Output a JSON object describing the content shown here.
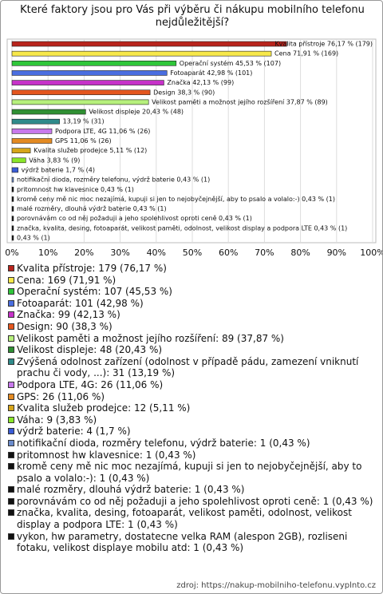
{
  "chart_data": {
    "type": "hbar",
    "title": "Které faktory jsou pro Vás při výběru či nákupu mobilního telefonu nejdůležitější?",
    "values": [
      76.17,
      71.91,
      45.53,
      42.98,
      42.13,
      38.3,
      37.87,
      20.43,
      13.19,
      11.06,
      11.06,
      5.11,
      3.83,
      1.7,
      0.43,
      0.43,
      0.43,
      0.43,
      0.43,
      0.43,
      0.43
    ],
    "value_labels": [
      "Kvalita přístroje 76,17 % (179)",
      "Cena 71,91 % (169)",
      "Operační systém 45,53 % (107)",
      "Fotoaparát 42,98 % (101)",
      "Značka 42,13 % (99)",
      "Design 38,3 % (90)",
      "Velikost paměti a možnost jejího rozšíření 37,87 % (89)",
      "Velikost displeje 20,43 % (48)",
      "13,19 % (31)",
      "Podpora LTE, 4G 11,06 % (26)",
      "GPS 11,06 % (26)",
      "Kvalita služeb prodejce 5,11 % (12)",
      "Váha 3,83 % (9)",
      "výdrž baterie 1,7 % (4)",
      "notifikační dioda, rozměry telefonu, výdrž baterie 0,43 % (1)",
      "pritomnost hw klavesnice 0,43 % (1)",
      "kromě ceny mě nic moc nezajímá, kupuji si jen to nejobyčejnější, aby to psalo a volalo:-) 0,43 % (1)",
      "malé rozměry, dlouhá výdrž baterie 0,43 % (1)",
      "porovnávám co od něj požaduji a jeho spolehlivost oproti ceně 0,43 % (1)",
      "značka, kvalita, desing, fotoaparát, velikost paměti, odolnost, velikost display a podpora LTE 0,43 % (1)",
      "0,43 % (1)"
    ],
    "legend": [
      "Kvalita přístroje: 179 (76,17 %)",
      "Cena: 169 (71,91 %)",
      "Operační systém: 107 (45,53 %)",
      "Fotoaparát: 101 (42,98 %)",
      "Značka: 99 (42,13 %)",
      "Design: 90 (38,3 %)",
      "Velikost paměti a možnost jejího rozšíření: 89 (37,87 %)",
      "Velikost displeje: 48 (20,43 %)",
      "Zvýšená odolnost zařízení (odolnost v případě pádu, zamezení vniknutí prachu či vody, ...): 31 (13,19 %)",
      "Podpora LTE, 4G: 26 (11,06 %)",
      "GPS: 26 (11,06 %)",
      "Kvalita služeb prodejce: 12 (5,11 %)",
      "Váha: 9 (3,83 %)",
      "výdrž baterie: 4 (1,7 %)",
      "notifikační dioda, rozměry telefonu, výdrž baterie: 1 (0,43 %)",
      "pritomnost hw klavesnice: 1 (0,43 %)",
      "kromě ceny mě nic moc nezajímá, kupuji si jen to nejobyčejnější, aby to psalo a volalo:-): 1 (0,43 %)",
      "malé rozměry, dlouhá výdrž baterie: 1 (0,43 %)",
      "porovnávám co od něj požaduji a jeho spolehlivost oproti ceně: 1 (0,43 %)",
      "značka, kvalita, desing, fotoaparát, velikost paměti, odolnost, velikost display a podpora LTE: 1 (0,43 %)",
      "vykon, hw parametry, dostatecne velka RAM (alespon 2GB), rozliseni fotaku, velikost displaye mobilu atd: 1 (0,43 %)"
    ],
    "colors": [
      "#b8241c",
      "#f7e84a",
      "#2fc63a",
      "#4a6ee0",
      "#c632c8",
      "#e4561e",
      "#b6f07c",
      "#2f8f33",
      "#2f8a8a",
      "#c879ec",
      "#e38a22",
      "#d6a51a",
      "#8ae629",
      "#3a5cd6",
      "#6b8ccc",
      "#111111",
      "#111111",
      "#111111",
      "#111111",
      "#111111",
      "#111111"
    ],
    "xlim": [
      0,
      100
    ],
    "xticks": [
      {
        "value": 0,
        "label": "0%"
      },
      {
        "value": 10,
        "label": "10%"
      },
      {
        "value": 20,
        "label": "20%"
      },
      {
        "value": 30,
        "label": "30%"
      },
      {
        "value": 40,
        "label": "40%"
      },
      {
        "value": 50,
        "label": "50%"
      },
      {
        "value": 60,
        "label": "60%"
      },
      {
        "value": 70,
        "label": "70%"
      },
      {
        "value": 80,
        "label": "80%"
      },
      {
        "value": 90,
        "label": "90%"
      },
      {
        "value": 100,
        "label": "100%"
      }
    ],
    "grid": true,
    "source": "zdroj: https://nakup-mobilniho-telefonu.vyplnto.cz"
  }
}
